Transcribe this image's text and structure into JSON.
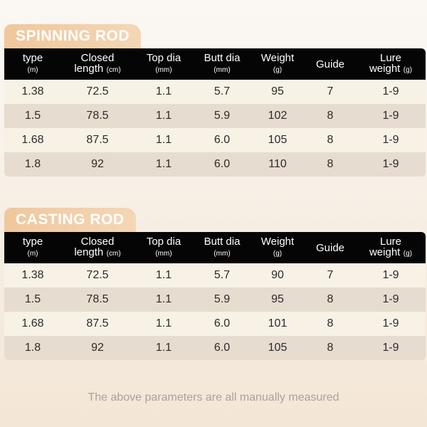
{
  "headers": [
    {
      "main": "type",
      "sub": "(m)",
      "inline": false
    },
    {
      "main": "Closed",
      "main2": "length",
      "sub": "(cm)",
      "inline": false
    },
    {
      "main": "Top dia",
      "sub": "(mm)",
      "inline": false
    },
    {
      "main": "Butt dia",
      "sub": "(mm)",
      "inline": false
    },
    {
      "main": "Weight",
      "sub": "(g)",
      "inline": false
    },
    {
      "main": "Guide",
      "sub": "",
      "inline": false
    },
    {
      "main": "Lure",
      "main2": "weight",
      "sub": "(g)",
      "inline": false
    }
  ],
  "spinning": {
    "title": "SPINNING ROD",
    "rows": [
      [
        "1.38",
        "72.5",
        "1.1",
        "5.7",
        "95",
        "7",
        "1-9"
      ],
      [
        "1.5",
        "78.5",
        "1.1",
        "5.9",
        "102",
        "8",
        "1-9"
      ],
      [
        "1.68",
        "87.5",
        "1.1",
        "6.0",
        "105",
        "8",
        "1-9"
      ],
      [
        "1.8",
        "92",
        "1.1",
        "6.0",
        "110",
        "8",
        "1-9"
      ]
    ]
  },
  "casting": {
    "title": "CASTING ROD",
    "rows": [
      [
        "1.38",
        "72.5",
        "1.1",
        "5.7",
        "90",
        "7",
        "1-9"
      ],
      [
        "1.5",
        "78.5",
        "1.1",
        "5.9",
        "95",
        "8",
        "1-9"
      ],
      [
        "1.68",
        "87.5",
        "1.1",
        "6.0",
        "101",
        "8",
        "1-9"
      ],
      [
        "1.8",
        "92",
        "1.1",
        "6.0",
        "105",
        "8",
        "1-9"
      ]
    ]
  },
  "footnote": "The above parameters are all manually measured",
  "colors": {
    "accent": "#efc79d",
    "header_bg": "#050505",
    "row_light": "#f8f1e5",
    "row_dark": "#e6dccf"
  }
}
